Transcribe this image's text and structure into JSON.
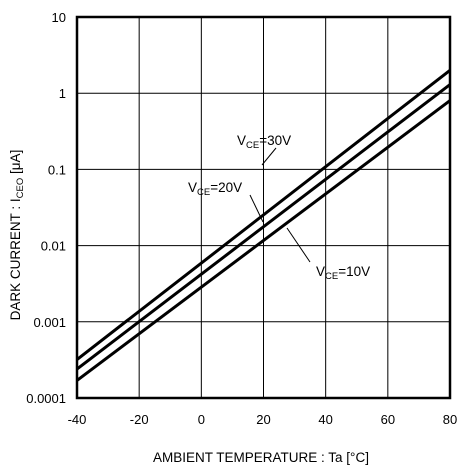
{
  "chart_data": {
    "type": "line",
    "xlabel": "AMBIENT TEMPERATURE : Ta [°C]",
    "ylabel": {
      "prefix": "DARK CURRENT : I",
      "sub": "CEO",
      "suffix": " [μA]"
    },
    "xlim": [
      -40,
      80
    ],
    "ylim": [
      0.0001,
      10
    ],
    "y_scale": "log",
    "grid": true,
    "x_ticks": [
      -40,
      -20,
      0,
      20,
      40,
      60,
      80
    ],
    "x_tick_labels": [
      "-40",
      "-20",
      "0",
      "20",
      "40",
      "60",
      "80"
    ],
    "y_ticks": [
      0.0001,
      0.001,
      0.01,
      0.1,
      1,
      10
    ],
    "y_tick_labels": [
      "0.0001",
      "0.001",
      "0.01",
      "0.1",
      "1",
      "10"
    ],
    "series": [
      {
        "name": "VCE=30V",
        "label_main": "V",
        "label_sub": "CE",
        "label_rest": "=30V",
        "x": [
          -40,
          80
        ],
        "y": [
          0.00032,
          2.0
        ]
      },
      {
        "name": "VCE=20V",
        "label_main": "V",
        "label_sub": "CE",
        "label_rest": "=20V",
        "x": [
          -40,
          80
        ],
        "y": [
          0.00024,
          1.3
        ]
      },
      {
        "name": "VCE=10V",
        "label_main": "V",
        "label_sub": "CE",
        "label_rest": "=10V",
        "x": [
          -40,
          80
        ],
        "y": [
          0.00017,
          0.8
        ]
      }
    ]
  }
}
